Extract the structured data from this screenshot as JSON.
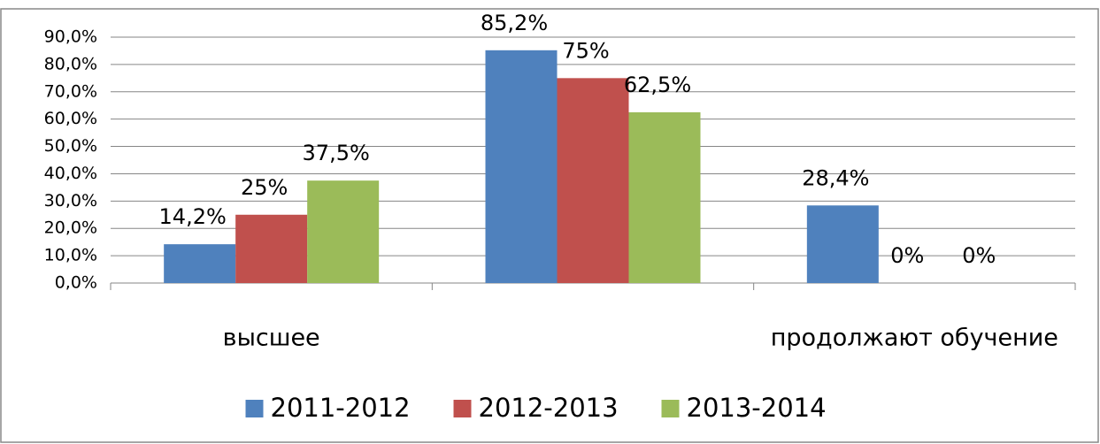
{
  "chart_data": {
    "type": "bar",
    "categories": [
      "высшее",
      null,
      "продолжают обучение"
    ],
    "series": [
      {
        "name": "2011-2012",
        "color": "#4f81bd",
        "values": [
          14.2,
          85.2,
          28.4
        ],
        "value_labels": [
          "14,2%",
          "85,2%",
          "28,4%"
        ]
      },
      {
        "name": "2012-2013",
        "color": "#c0504d",
        "values": [
          25,
          75,
          0
        ],
        "value_labels": [
          "25%",
          "75%",
          "0%"
        ]
      },
      {
        "name": "2013-2014",
        "color": "#9bbb59",
        "values": [
          37.5,
          62.5,
          0
        ],
        "value_labels": [
          "37,5%",
          "62,5%",
          "0%"
        ]
      }
    ],
    "ylim": [
      0,
      90
    ],
    "yticks": [
      {
        "value": 0,
        "label": "0,0%"
      },
      {
        "value": 10,
        "label": "10,0%"
      },
      {
        "value": 20,
        "label": "20,0%"
      },
      {
        "value": 30,
        "label": "30,0%"
      },
      {
        "value": 40,
        "label": "40,0%"
      },
      {
        "value": 50,
        "label": "50,0%"
      },
      {
        "value": 60,
        "label": "60,0%"
      },
      {
        "value": 70,
        "label": "70,0%"
      },
      {
        "value": 80,
        "label": "80,0%"
      },
      {
        "value": 90,
        "label": "90,0%"
      }
    ],
    "grid": true,
    "legend": "bottom"
  }
}
